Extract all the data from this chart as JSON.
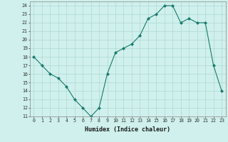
{
  "x": [
    0,
    1,
    2,
    3,
    4,
    5,
    6,
    7,
    8,
    9,
    10,
    11,
    12,
    13,
    14,
    15,
    16,
    17,
    18,
    19,
    20,
    21,
    22,
    23
  ],
  "y": [
    18,
    17,
    16,
    15.5,
    14.5,
    13,
    12,
    11,
    12,
    16,
    18.5,
    19,
    19.5,
    20.5,
    22.5,
    23,
    24,
    24,
    22,
    22.5,
    22,
    22,
    17,
    14
  ],
  "line_color": "#1a7a6e",
  "marker_color": "#1a7a6e",
  "bg_color": "#cff0ec",
  "grid_color": "#b0d8d4",
  "xlabel": "Humidex (Indice chaleur)",
  "xlim": [
    -0.5,
    23.5
  ],
  "ylim": [
    11,
    24.5
  ],
  "yticks": [
    11,
    12,
    13,
    14,
    15,
    16,
    17,
    18,
    19,
    20,
    21,
    22,
    23,
    24
  ],
  "xticks": [
    0,
    1,
    2,
    3,
    4,
    5,
    6,
    7,
    8,
    9,
    10,
    11,
    12,
    13,
    14,
    15,
    16,
    17,
    18,
    19,
    20,
    21,
    22,
    23
  ]
}
